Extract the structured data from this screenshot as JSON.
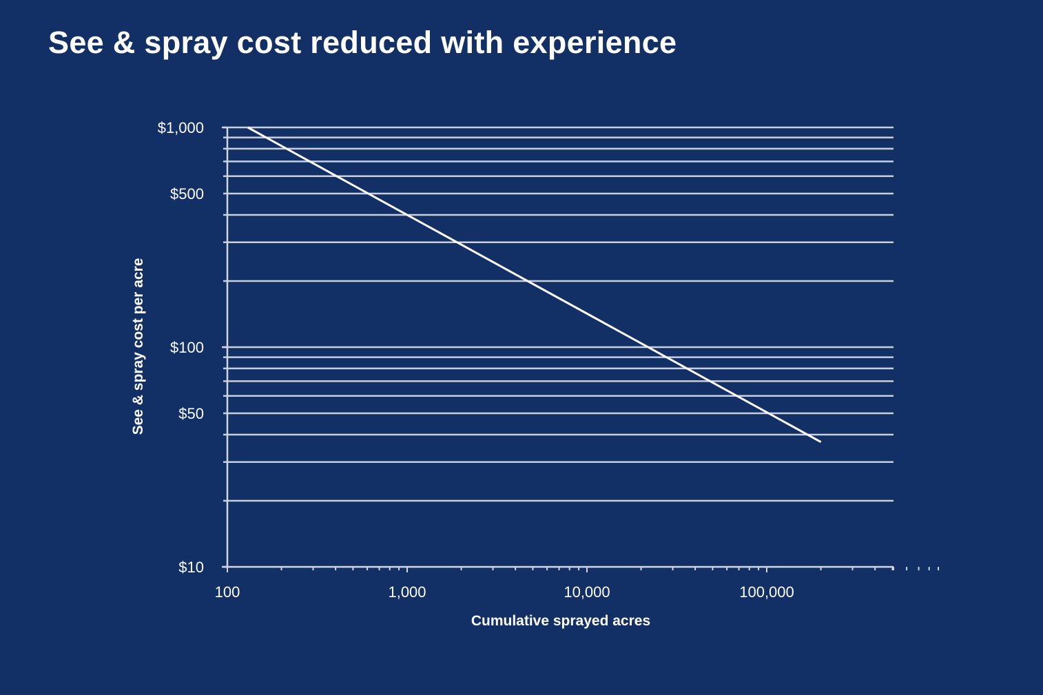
{
  "slide": {
    "title": "See & spray cost reduced with experience",
    "background_color": "#133066",
    "foreground_color": "#ffffff"
  },
  "chart_data": {
    "type": "line",
    "title": "",
    "xlabel": "Cumulative sprayed acres",
    "ylabel": "See & spray cost per acre",
    "x_scale": "log",
    "y_scale": "log",
    "xlim": [
      100,
      500000
    ],
    "ylim": [
      10,
      1000
    ],
    "x_ticks": [
      100,
      1000,
      10000,
      100000
    ],
    "x_tick_labels": [
      "100",
      "1,000",
      "10,000",
      "100,000"
    ],
    "y_ticks": [
      10,
      50,
      100,
      500,
      1000
    ],
    "y_tick_labels": [
      "$10",
      "$50",
      "$100",
      "$500",
      "$1,000"
    ],
    "y_gridlines": [
      20,
      30,
      40,
      50,
      60,
      70,
      80,
      90,
      100,
      200,
      300,
      400,
      500,
      600,
      700,
      800,
      900,
      1000
    ],
    "grid": true,
    "legend": "none",
    "series": [
      {
        "x": [
          130,
          200000
        ],
        "y": [
          1000,
          37
        ]
      }
    ]
  }
}
